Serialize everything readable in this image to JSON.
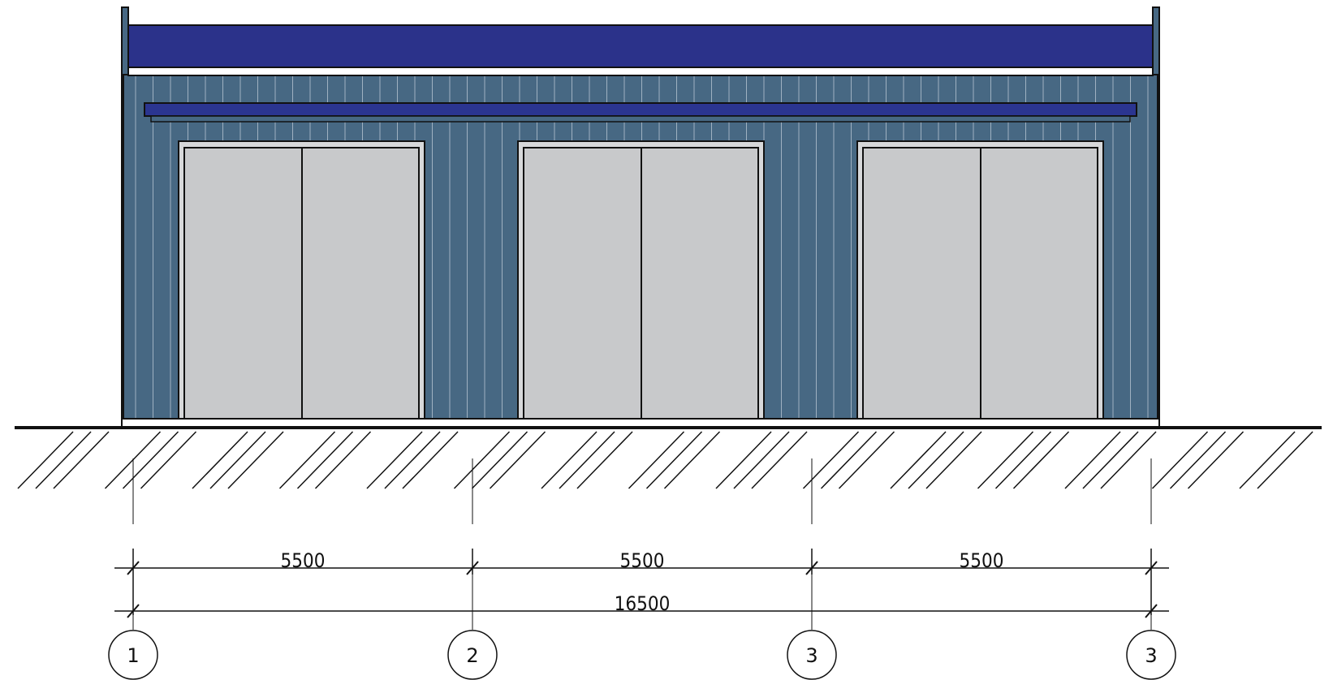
{
  "elevation": {
    "colors": {
      "wall": "#476883",
      "parapet": "#2b328a",
      "canopy": "#2b3590",
      "door": "#c8c9cb",
      "rib": "#9fb1c1",
      "line": "#111111"
    },
    "doors": [
      {
        "leaves": 2
      },
      {
        "leaves": 2
      },
      {
        "leaves": 2
      }
    ],
    "dimensions": {
      "spans": [
        "5500",
        "5500",
        "5500"
      ],
      "overall": "16500"
    },
    "axes": [
      "1",
      "2",
      "3",
      "3"
    ]
  }
}
